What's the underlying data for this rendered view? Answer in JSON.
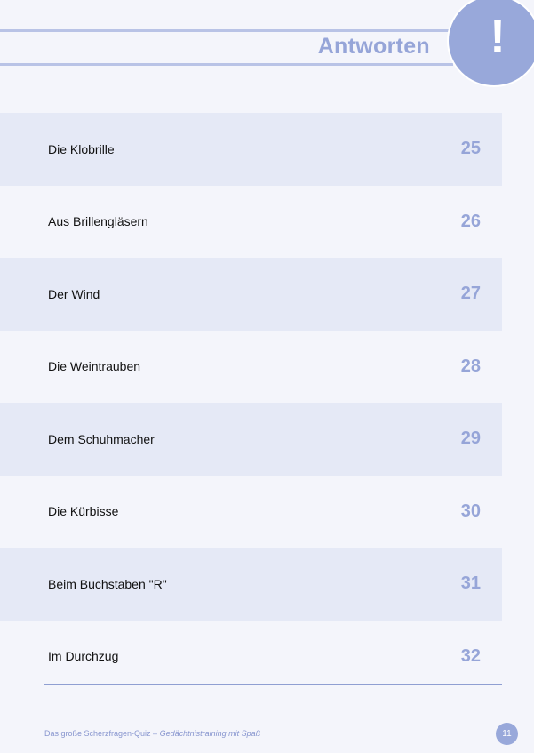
{
  "header": {
    "title": "Antworten",
    "badge_symbol": "!"
  },
  "answers": [
    {
      "text": "Die Klobrille",
      "page": "25"
    },
    {
      "text": "Aus Brillengläsern",
      "page": "26"
    },
    {
      "text": "Der Wind",
      "page": "27"
    },
    {
      "text": "Die Weintrauben",
      "page": "28"
    },
    {
      "text": "Dem Schuhmacher",
      "page": "29"
    },
    {
      "text": "Die Kürbisse",
      "page": "30"
    },
    {
      "text": "Beim Buchstaben \"R\"",
      "page": "31"
    },
    {
      "text": "Im Durchzug",
      "page": "32"
    }
  ],
  "footer": {
    "book_title": "Das große Scherzfragen-Quiz –",
    "subtitle": "Gedächtnistraining mit Spaß",
    "page_number": "11"
  },
  "colors": {
    "accent": "#96a5d8",
    "row_shade": "#e5e9f6",
    "background": "#f4f5fb"
  }
}
